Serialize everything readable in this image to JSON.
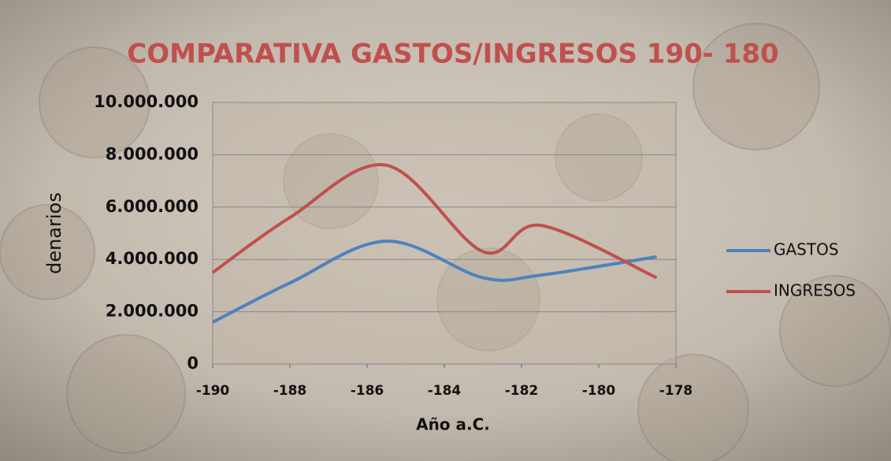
{
  "chart_data": {
    "type": "line",
    "title": "COMPARATIVA GASTOS/INGRESOS 190- 180",
    "x_label": "Año a.C.",
    "y_label": "denarios",
    "x": [
      -190,
      -188,
      -185.5,
      -183,
      -181.5,
      -178.5
    ],
    "series": [
      {
        "name": "GASTOS",
        "color": "#4f81bd",
        "values": [
          1600000,
          3100000,
          4700000,
          3300000,
          3400000,
          4100000
        ]
      },
      {
        "name": "INGRESOS",
        "color": "#c0504d",
        "values": [
          3500000,
          5600000,
          7600000,
          4300000,
          5300000,
          3300000
        ]
      }
    ],
    "xlim": [
      -190,
      -178
    ],
    "xticks": [
      -190,
      -188,
      -186,
      -184,
      -182,
      -180,
      -178
    ],
    "ylim": [
      0,
      10000000
    ],
    "yticks": [
      {
        "value": 0,
        "label": "0"
      },
      {
        "value": 2000000,
        "label": "2.000.000"
      },
      {
        "value": 4000000,
        "label": "4.000.000"
      },
      {
        "value": 6000000,
        "label": "6.000.000"
      },
      {
        "value": 8000000,
        "label": "8.000.000"
      },
      {
        "value": 10000000,
        "label": "10.000.000"
      }
    ],
    "grid": true,
    "smooth": true,
    "legend": "right"
  }
}
